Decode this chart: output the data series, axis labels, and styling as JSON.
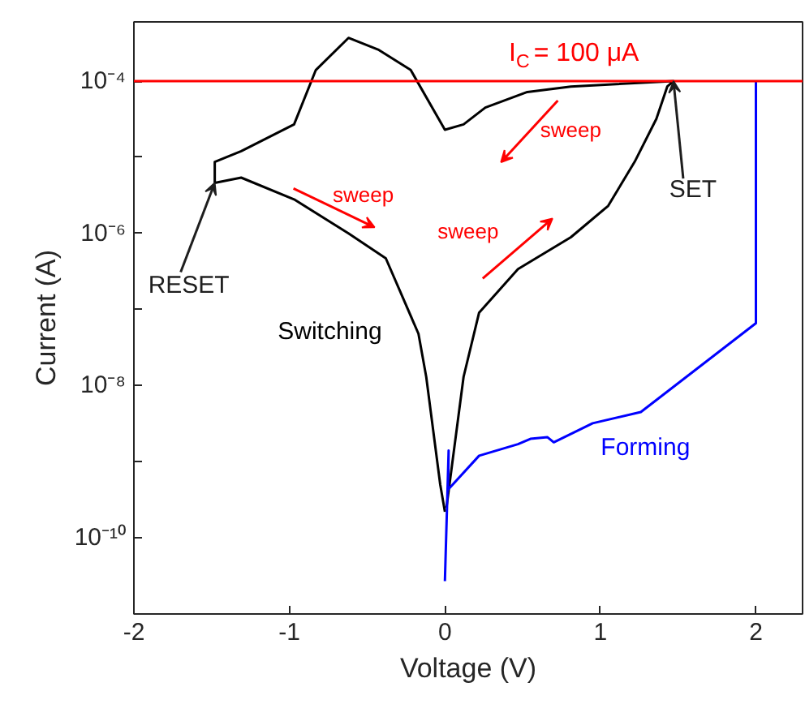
{
  "chart_data": {
    "type": "line",
    "xlabel": "Voltage (V)",
    "ylabel": "Current (A)",
    "log": "y",
    "xlim": [
      -2,
      2.3
    ],
    "xticks": [
      -2,
      -1,
      0,
      1,
      2
    ],
    "ylim": [
      1e-11,
      0.0006
    ],
    "yticks": [
      {
        "value": 1e-11,
        "label": null
      },
      {
        "value": 1e-10,
        "label": "10⁻¹⁰"
      },
      {
        "value": 1e-09,
        "label": null
      },
      {
        "value": 1e-08,
        "label": "10⁻⁸"
      },
      {
        "value": 1e-07,
        "label": null
      },
      {
        "value": 1e-06,
        "label": "10⁻⁶"
      },
      {
        "value": 1e-05,
        "label": null
      },
      {
        "value": 0.0001,
        "label": "10⁻⁴"
      }
    ],
    "series": [
      {
        "name": "Switching",
        "color": "#000000",
        "x": [
          0.01,
          0.12,
          0.22,
          0.47,
          0.81,
          1.05,
          1.22,
          1.36,
          1.43,
          1.47,
          0.81,
          0.53,
          0.26,
          0.12,
          0,
          -0.22,
          -0.43,
          -0.62,
          -0.83,
          -0.97,
          -1.31,
          -1.48,
          -1.48,
          -1.31,
          -0.97,
          -0.62,
          -0.38,
          -0.17,
          -0.12,
          -0.03,
          0
        ],
        "values": [
          2.5e-10,
          1.3e-08,
          9.1e-08,
          3.4e-07,
          8.9e-07,
          2.3e-06,
          8.7e-06,
          3.2e-05,
          8.5e-05,
          0.0001,
          8.5e-05,
          7.2e-05,
          4.5e-05,
          2.7e-05,
          2.3e-05,
          0.00014,
          0.00026,
          0.00037,
          0.00014,
          2.7e-05,
          1.2e-05,
          8.7e-06,
          4.6e-06,
          5.4e-06,
          2.8e-06,
          1e-06,
          4.7e-07,
          4.8e-08,
          1.3e-08,
          5e-10,
          2.2e-10
        ]
      },
      {
        "name": "Forming",
        "color": "#0000ff",
        "x": [
          0,
          0.024,
          0.02,
          0.22,
          0.47,
          0.55,
          0.66,
          0.7,
          0.95,
          1.26,
          2.0,
          2.0
        ],
        "values": [
          2.7e-11,
          1.4e-09,
          4.3e-10,
          1.2e-09,
          1.7e-09,
          2e-09,
          2.1e-09,
          1.8e-09,
          3.2e-09,
          4.5e-09,
          6.6e-08,
          0.0001
        ]
      }
    ],
    "ref_lines": [
      {
        "axis": "y",
        "value": 0.0001,
        "label": "I$_{C}$ = 100 μA",
        "color": "#ff0000",
        "line_style": "solid"
      }
    ],
    "annotations": [
      "sweep",
      "sweep",
      "sweep",
      {
        "text": "RESET",
        "x": -1.48,
        "y": 4.6e-06
      },
      {
        "text": "SET",
        "x": 1.47,
        "y": 0.0001
      }
    ]
  }
}
